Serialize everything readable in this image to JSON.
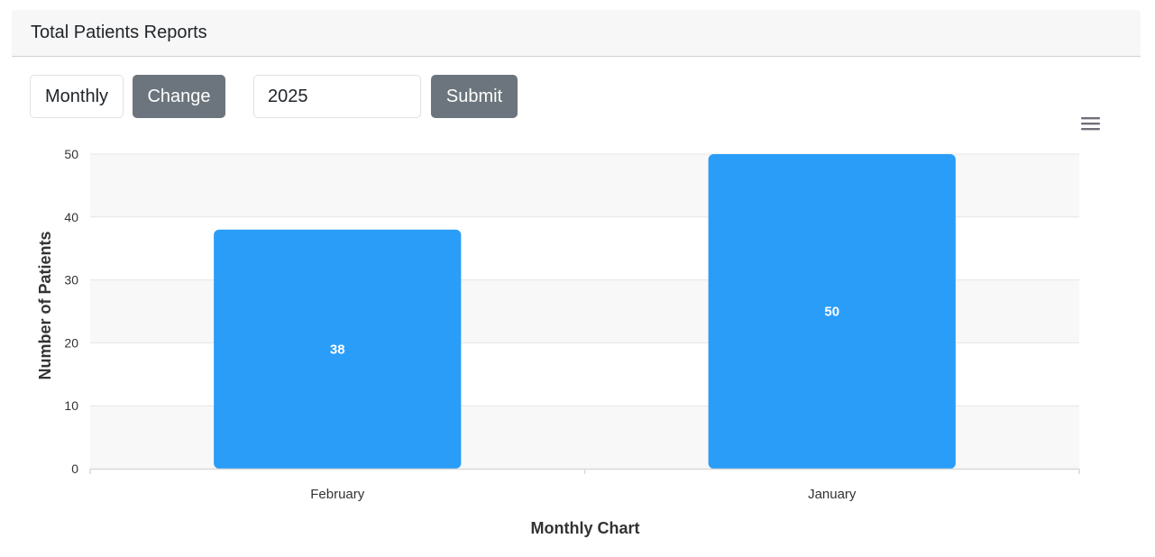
{
  "header": {
    "title": "Total Patients Reports"
  },
  "controls": {
    "period_value": "Monthly",
    "change_label": "Change",
    "year_value": "2025",
    "submit_label": "Submit"
  },
  "icons": {
    "menu": "hamburger-menu-icon"
  },
  "colors": {
    "bar": "#2a9df9",
    "button": "#6c757d",
    "band": "#f8f8f8",
    "grid": "#e5e5e5"
  },
  "chart_data": {
    "type": "bar",
    "categories": [
      "February",
      "January"
    ],
    "values": [
      38,
      50
    ],
    "xlabel": "Monthly Chart",
    "ylabel": "Number of Patients",
    "ylim": [
      0,
      50
    ],
    "yticks": [
      0,
      10,
      20,
      30,
      40,
      50
    ],
    "grid": true,
    "data_labels": true,
    "legend": "none"
  }
}
